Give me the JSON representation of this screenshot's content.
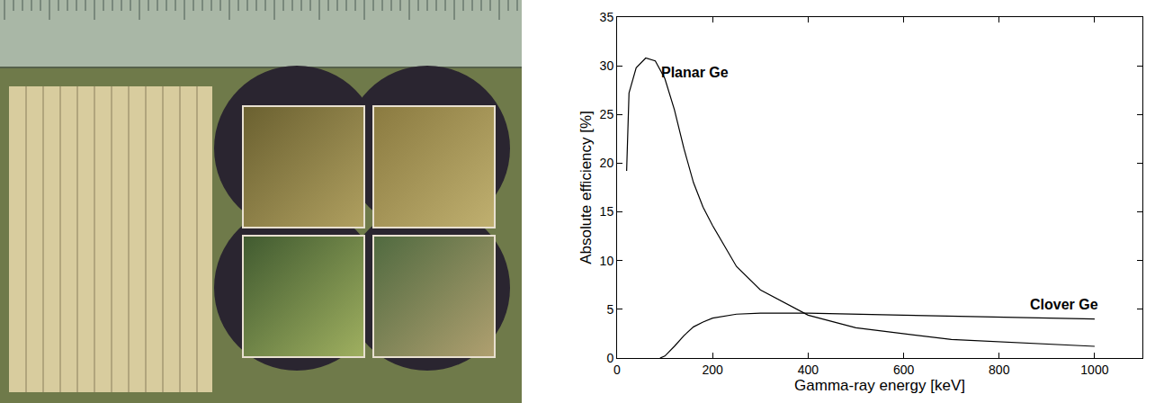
{
  "chart_data": {
    "type": "line",
    "x_label": "Gamma-ray energy [keV]",
    "y_label": "Absolute efficiency [%]",
    "xlim": [
      0,
      1100
    ],
    "xticks": [
      0,
      200,
      400,
      600,
      800,
      1000
    ],
    "ylim": [
      0,
      35
    ],
    "yticks": [
      0,
      5,
      10,
      15,
      20,
      25,
      30,
      35
    ],
    "grid": false,
    "series": [
      {
        "name": "Planar Ge",
        "color": "#000000",
        "x": [
          20,
          25,
          40,
          60,
          80,
          100,
          120,
          140,
          160,
          180,
          200,
          250,
          300,
          400,
          500,
          700,
          1000
        ],
        "values": [
          19.2,
          27.2,
          29.8,
          30.8,
          30.5,
          28.7,
          25.5,
          21.5,
          18,
          15.5,
          13.6,
          9.4,
          7,
          4.4,
          3.1,
          1.9,
          1.2
        ]
      },
      {
        "name": "Clover Ge",
        "color": "#000000",
        "x": [
          90,
          100,
          120,
          140,
          160,
          180,
          200,
          250,
          300,
          400,
          600,
          800,
          1000
        ],
        "values": [
          0,
          0.2,
          1.2,
          2.3,
          3.2,
          3.7,
          4.1,
          4.5,
          4.6,
          4.6,
          4.4,
          4.2,
          4.0
        ]
      }
    ],
    "annotations": [
      {
        "text": "Planar Ge",
        "x": 88,
        "y": 29.3
      },
      {
        "text": "Clover Ge",
        "x": 860,
        "y": 5.5
      }
    ]
  }
}
